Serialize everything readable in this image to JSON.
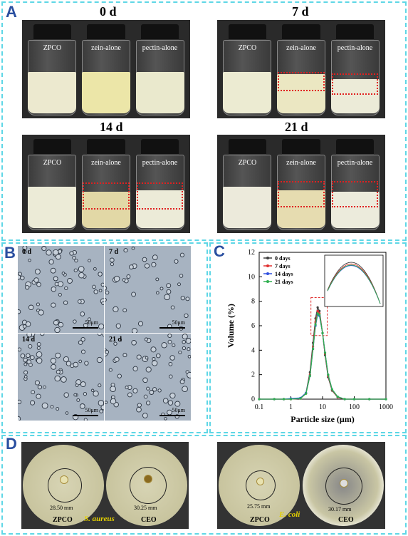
{
  "panelA": {
    "label": "A",
    "groups": [
      {
        "title": "0 d",
        "vials": [
          "ZPCO",
          "zein-alone",
          "pectin-alone"
        ]
      },
      {
        "title": "7 d",
        "vials": [
          "ZPCO",
          "zein-alone",
          "pectin-alone"
        ]
      },
      {
        "title": "14 d",
        "vials": [
          "ZPCO",
          "zein-alone",
          "pectin-alone"
        ]
      },
      {
        "title": "21 d",
        "vials": [
          "ZPCO",
          "zein-alone",
          "pectin-alone"
        ]
      }
    ]
  },
  "panelB": {
    "label": "B",
    "images": [
      {
        "day": "0 d",
        "scale": "50μm"
      },
      {
        "day": "7 d",
        "scale": "50μm"
      },
      {
        "day": "14 d",
        "scale": "50μm"
      },
      {
        "day": "21 d",
        "scale": "50μm"
      }
    ]
  },
  "panelC": {
    "label": "C"
  },
  "chart_data": {
    "type": "line",
    "xlabel": "Particle size (μm)",
    "ylabel": "Volume (%)",
    "xscale": "log",
    "xlim": [
      0.1,
      1000
    ],
    "ylim": [
      0,
      12
    ],
    "xticks": [
      "0.1",
      "1",
      "10",
      "100",
      "1000"
    ],
    "yticks": [
      "0",
      "2",
      "4",
      "6",
      "8",
      "10",
      "12"
    ],
    "legend_position": "top-left",
    "x": [
      1,
      2,
      3,
      4,
      5,
      6,
      7,
      8,
      10,
      12,
      15,
      20,
      30,
      50
    ],
    "series": [
      {
        "name": "0 days",
        "color": "#404040",
        "values": [
          0,
          0.05,
          0.5,
          2.2,
          4.6,
          6.6,
          7.5,
          7.2,
          5.4,
          3.6,
          1.8,
          0.7,
          0.15,
          0
        ]
      },
      {
        "name": "7 days",
        "color": "#e03030",
        "values": [
          0,
          0.05,
          0.45,
          2.0,
          4.3,
          6.3,
          7.2,
          7.0,
          5.4,
          3.7,
          1.9,
          0.75,
          0.15,
          0
        ]
      },
      {
        "name": "14 days",
        "color": "#3050e0",
        "values": [
          0.05,
          0.1,
          0.5,
          1.9,
          4.1,
          6.0,
          6.9,
          6.8,
          5.4,
          3.8,
          2.0,
          0.8,
          0.2,
          0
        ]
      },
      {
        "name": "21 days",
        "color": "#30b050",
        "values": [
          0,
          0.05,
          0.45,
          1.9,
          4.1,
          6.1,
          7.0,
          6.9,
          5.4,
          3.8,
          2.0,
          0.8,
          0.2,
          0
        ]
      }
    ]
  },
  "panelD": {
    "label": "D",
    "dishes": [
      {
        "diameter": "28.50 mm",
        "label": "ZPCO"
      },
      {
        "diameter": "30.25 mm",
        "label": "CEO"
      },
      {
        "diameter": "25.75 mm",
        "label": "ZPCO"
      },
      {
        "diameter": "30.17 mm",
        "label": "CEO"
      }
    ],
    "species": [
      "S. aureus",
      "E. coli"
    ]
  }
}
